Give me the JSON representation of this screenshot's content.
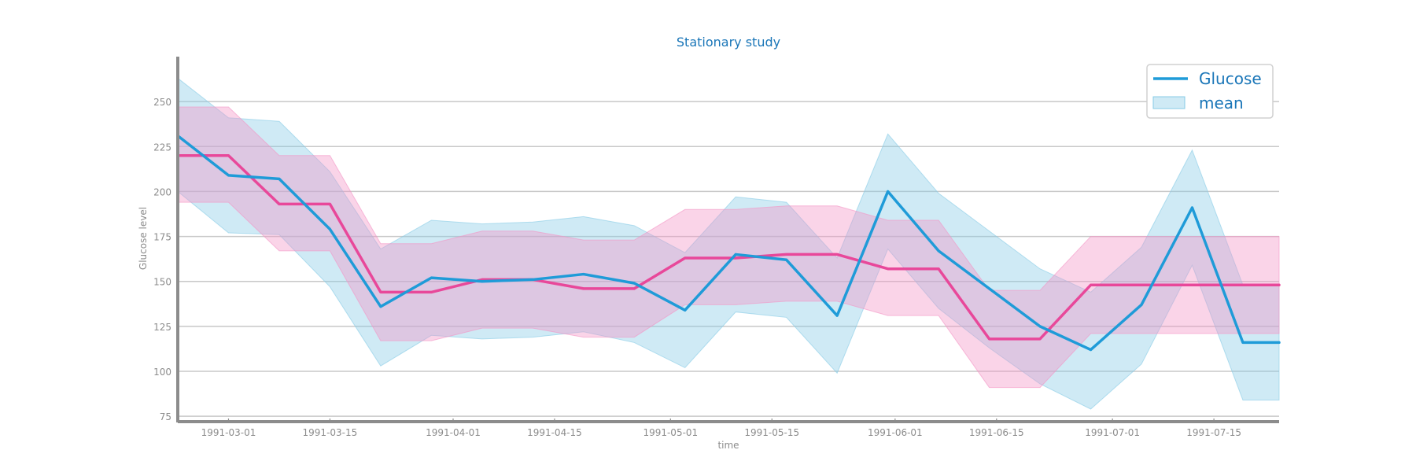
{
  "chart_data": {
    "type": "line",
    "title": "Stationary study",
    "xlabel": "time",
    "ylabel": "Glucose level",
    "ylim": [
      72,
      275
    ],
    "xlim": [
      "1991-02-22",
      "1991-07-24"
    ],
    "yticks": [
      75,
      100,
      125,
      150,
      175,
      200,
      225,
      250
    ],
    "xticks": [
      "1991-03-01",
      "1991-03-15",
      "1991-04-01",
      "1991-04-15",
      "1991-05-01",
      "1991-05-15",
      "1991-06-01",
      "1991-06-15",
      "1991-07-01",
      "1991-07-15"
    ],
    "grid": "horizontal",
    "legend_position": "top-right",
    "legend": [
      "Glucose",
      "mean"
    ],
    "x": [
      "1991-02-22",
      "1991-03-01",
      "1991-03-08",
      "1991-03-15",
      "1991-03-22",
      "1991-03-29",
      "1991-04-05",
      "1991-04-12",
      "1991-04-19",
      "1991-04-26",
      "1991-05-03",
      "1991-05-10",
      "1991-05-17",
      "1991-05-24",
      "1991-05-31",
      "1991-06-07",
      "1991-06-14",
      "1991-06-21",
      "1991-06-28",
      "1991-07-05",
      "1991-07-12",
      "1991-07-19",
      "1991-07-24"
    ],
    "series": [
      {
        "name": "Glucose",
        "color": "#1f9bd8",
        "values": [
          231,
          209,
          207,
          179,
          136,
          152,
          150,
          151,
          154,
          149,
          134,
          165,
          162,
          131,
          200,
          167,
          146,
          125,
          112,
          137,
          191,
          116,
          116
        ],
        "band_low": [
          200,
          177,
          176,
          147,
          103,
          120,
          118,
          119,
          122,
          116,
          102,
          133,
          130,
          99,
          168,
          135,
          113,
          93,
          79,
          104,
          159,
          84,
          84
        ],
        "band_high": [
          263,
          241,
          239,
          211,
          168,
          184,
          182,
          183,
          186,
          181,
          166,
          197,
          194,
          163,
          232,
          199,
          178,
          157,
          144,
          169,
          223,
          148,
          148
        ]
      },
      {
        "name": "",
        "color": "#e8489a",
        "values": [
          220,
          220,
          193,
          193,
          144,
          144,
          151,
          151,
          146,
          146,
          163,
          163,
          165,
          165,
          157,
          157,
          118,
          118,
          148,
          148,
          148,
          148,
          148
        ],
        "band_low": [
          194,
          194,
          167,
          167,
          117,
          117,
          124,
          124,
          119,
          119,
          137,
          137,
          139,
          139,
          131,
          131,
          91,
          91,
          121,
          121,
          121,
          121,
          121
        ],
        "band_high": [
          247,
          247,
          220,
          220,
          171,
          171,
          178,
          178,
          173,
          173,
          190,
          190,
          192,
          192,
          184,
          184,
          145,
          145,
          175,
          175,
          175,
          175,
          175
        ]
      }
    ]
  }
}
